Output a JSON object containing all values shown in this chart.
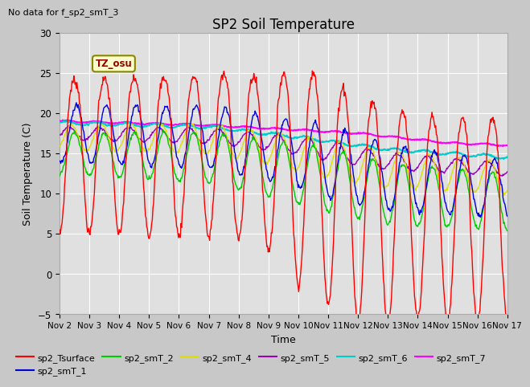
{
  "title": "SP2 Soil Temperature",
  "xlabel": "Time",
  "ylabel": "Soil Temperature (C)",
  "subtitle": "No data for f_sp2_smT_3",
  "tz_label": "TZ_osu",
  "ylim": [
    -5,
    30
  ],
  "xlim": [
    0,
    15
  ],
  "x_tick_labels": [
    "Nov 2",
    "Nov 3",
    "Nov 4",
    "Nov 5",
    "Nov 6",
    "Nov 7",
    "Nov 8",
    "Nov 9",
    "Nov 10",
    "Nov 11",
    "Nov 12",
    "Nov 13",
    "Nov 14",
    "Nov 15",
    "Nov 16",
    "Nov 17"
  ],
  "yticks": [
    -5,
    0,
    5,
    10,
    15,
    20,
    25,
    30
  ],
  "fig_facecolor": "#c8c8c8",
  "ax_facecolor": "#e0e0e0",
  "grid_color": "#ffffff",
  "series_colors": {
    "sp2_Tsurface": "#ff0000",
    "sp2_smT_1": "#0000dd",
    "sp2_smT_2": "#00cc00",
    "sp2_smT_4": "#dddd00",
    "sp2_smT_5": "#9900bb",
    "sp2_smT_6": "#00cccc",
    "sp2_smT_7": "#ff00ff"
  }
}
